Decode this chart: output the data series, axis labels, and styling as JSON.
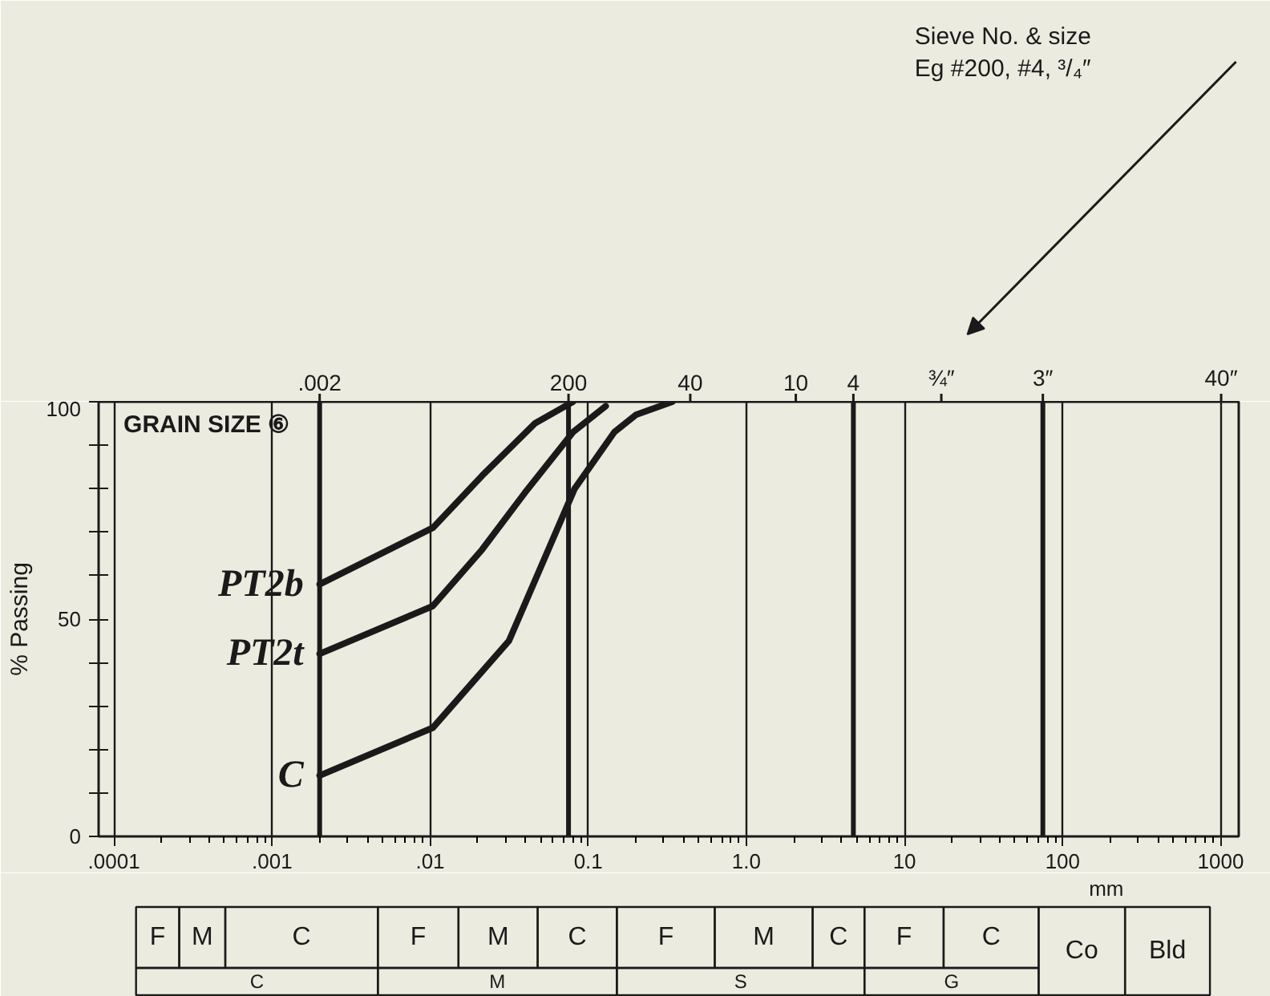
{
  "chart_data": {
    "type": "line",
    "xlabel": "mm",
    "ylabel": "% Passing",
    "log": "x",
    "xlim": [
      8e-05,
      1300
    ],
    "ylim": [
      0,
      100
    ],
    "xticks": [
      {
        "value": 0.0001,
        "label": ".0001"
      },
      {
        "value": 0.001,
        "label": ".001"
      },
      {
        "value": 0.01,
        "label": ".01"
      },
      {
        "value": 0.1,
        "label": "0.1"
      },
      {
        "value": 1,
        "label": "1.0"
      },
      10,
      100,
      1000
    ],
    "yticks": [
      0,
      {
        "value": 10,
        "label": null
      },
      {
        "value": 20,
        "label": null
      },
      {
        "value": 30,
        "label": null
      },
      {
        "value": 40,
        "label": null
      },
      50,
      {
        "value": 60,
        "label": null
      },
      {
        "value": 70,
        "label": null
      },
      {
        "value": 80,
        "label": null
      },
      {
        "value": 90,
        "label": null
      },
      100
    ],
    "grid": "x",
    "marker": "none",
    "line_style": "solid",
    "ref_lines": [
      {
        "axis": "x",
        "value": 0.002,
        "label": null,
        "color": "#1a1a1a"
      },
      {
        "axis": "x",
        "value": 0.075,
        "label": null,
        "color": "#1a1a1a"
      },
      {
        "axis": "x",
        "value": 4.75,
        "label": null,
        "color": "#1a1a1a"
      },
      {
        "axis": "x",
        "value": 75,
        "label": null,
        "color": "#1a1a1a"
      }
    ],
    "series": [
      {
        "name": "PT2b",
        "color": "#1a1a1a",
        "x": [
          0.002,
          0.0104,
          0.0213,
          0.0459,
          0.08
        ],
        "values": [
          58,
          71,
          83,
          95,
          100
        ]
      },
      {
        "name": "PT2t",
        "color": "#1a1a1a",
        "x": [
          0.002,
          0.0104,
          0.0213,
          0.0396,
          0.08,
          0.129
        ],
        "values": [
          42,
          53,
          66,
          79,
          93,
          99
        ]
      },
      {
        "name": "C",
        "color": "#1a1a1a",
        "x": [
          0.002,
          0.0104,
          0.0315,
          0.082,
          0.146,
          0.2,
          0.34
        ],
        "values": [
          14,
          25,
          45,
          80,
          93,
          97,
          100
        ]
      }
    ],
    "annotations": [
      "GRAIN SIZE ⑥",
      "Sieve   No. & size",
      "Eg    #200, #4, ³/₄″",
      "F",
      "M",
      "C",
      "F",
      "M",
      "C",
      "F",
      "M",
      "C",
      "F",
      "C",
      "Co",
      "Bld",
      "C",
      "M",
      "S",
      "G",
      {
        "text": ".002",
        "x": 0.002,
        "y": 100
      },
      {
        "text": "200",
        "x": 0.075,
        "y": 100
      },
      {
        "text": "4",
        "x": 4.75,
        "y": 100
      },
      {
        "text": "3″",
        "x": 75,
        "y": 100
      },
      "40",
      "10",
      "¾″",
      "40″"
    ]
  }
}
